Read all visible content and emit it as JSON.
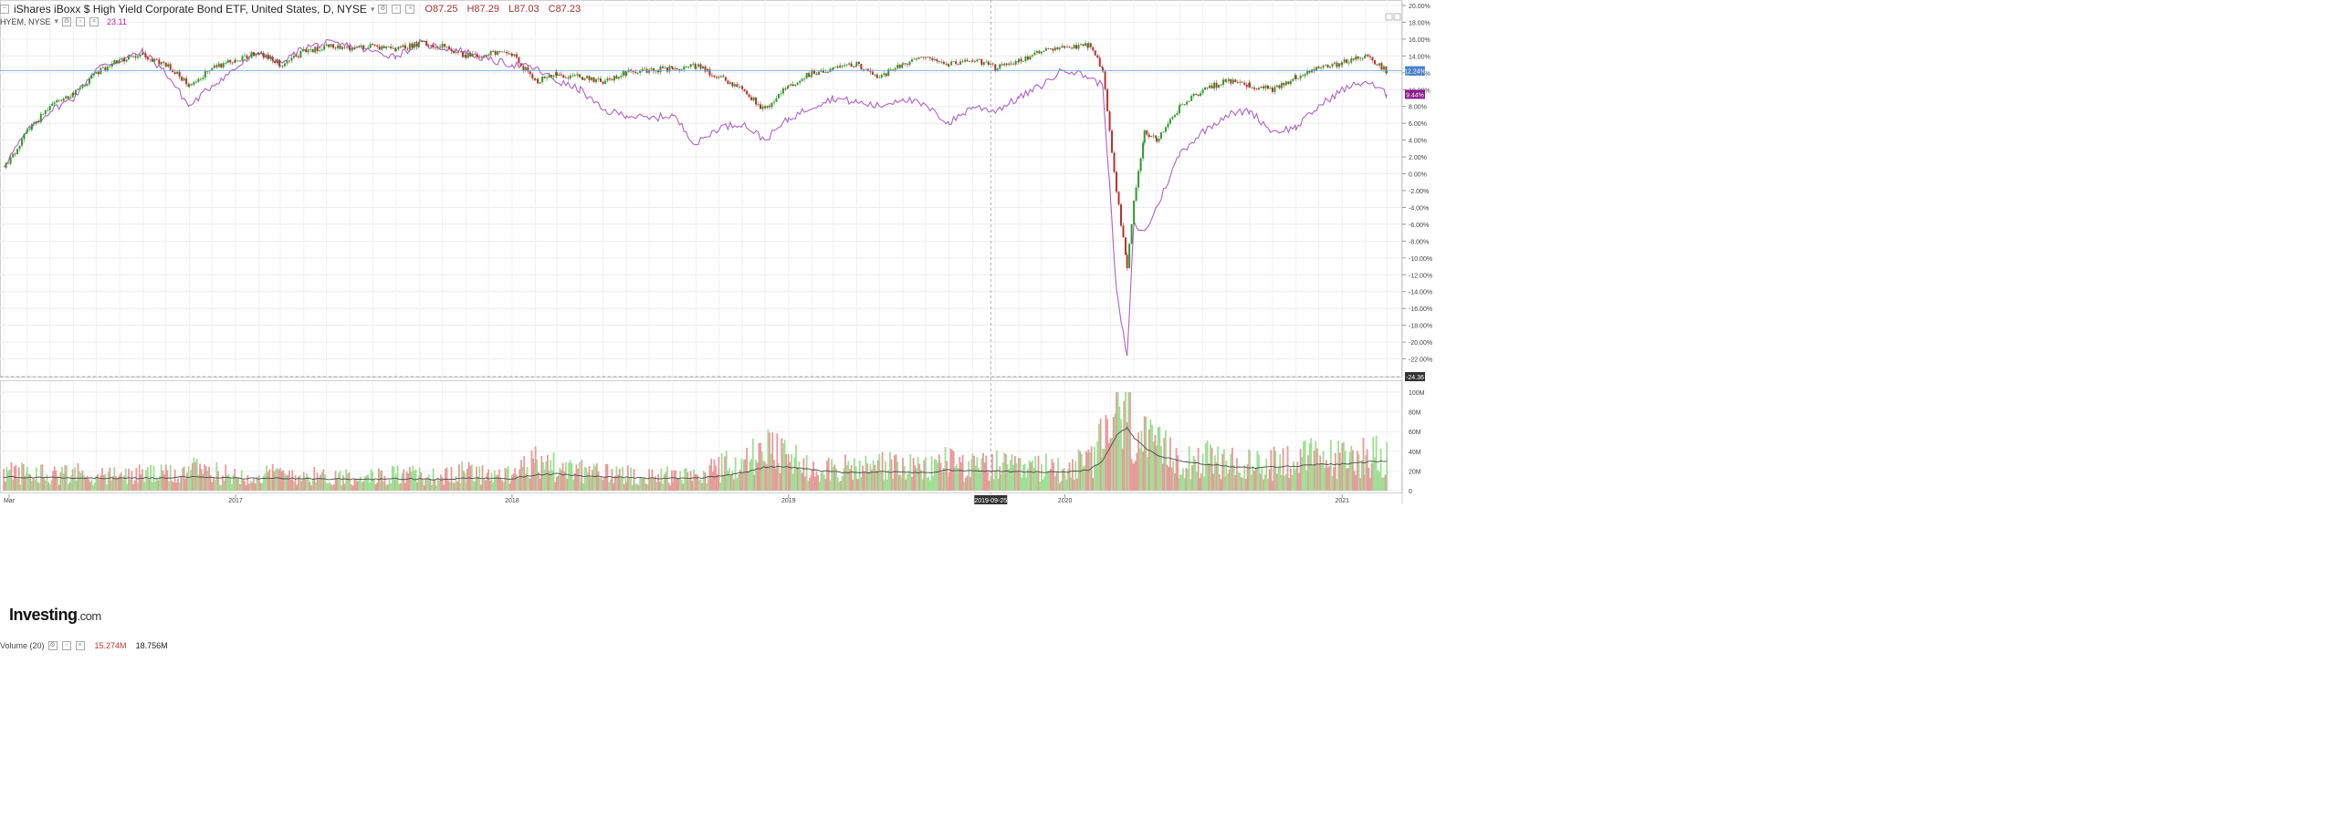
{
  "header": {
    "instrument": "iShares iBoxx $ High Yield Corporate Bond ETF, United States, D, NYSE",
    "open": "O87.25",
    "high": "H87.29",
    "low": "L87.03",
    "close": "C87.23",
    "compare_symbol": "HYEM, NYSE",
    "compare_value": "23.11"
  },
  "volume_legend": {
    "label": "Volume (20)",
    "value": "15.274M",
    "ma_value": "18.756M"
  },
  "logo": {
    "brand": "Investing",
    "suffix": ".com"
  },
  "crosshair": {
    "date_label": "2019-09-25",
    "price_label": "-24.36"
  },
  "colors": {
    "up": "#2e9b2e",
    "down": "#b8312f",
    "compare": "#b061c8",
    "current_line": "#6fa3e0",
    "current_badge": "#4a80d0",
    "compare_badge": "#8b1a8b",
    "volume_up": "#9fde94",
    "volume_down": "#e89a9a",
    "volume_ma": "#4a4a4a"
  },
  "chart_data": [
    {
      "type": "line",
      "title": "iShares iBoxx $ High Yield Corporate Bond ETF, United States, D, NYSE",
      "y_unit": "%",
      "ylim": [
        -24,
        20
      ],
      "y_ticks": [
        "20.00%",
        "18.00%",
        "16.00%",
        "14.00%",
        "12.00%",
        "10.00%",
        "8.00%",
        "6.00%",
        "4.00%",
        "2.00%",
        "0.00%",
        "-2.00%",
        "-4.00%",
        "-6.00%",
        "-8.00%",
        "-10.00%",
        "-12.00%",
        "-14.00%",
        "-16.00%",
        "-18.00%",
        "-20.00%",
        "-22.00%"
      ],
      "x_ticks": [
        "Mar",
        "2017",
        "2018",
        "2019",
        "2020",
        "2021"
      ],
      "current_value_labels": [
        "12.24%",
        "9.44%"
      ],
      "grid": true,
      "series": [
        {
          "name": "iShares iBoxx $ High Yield Corporate Bond ETF",
          "style": "candlestick",
          "x": [
            "2016-03-01",
            "2016-04-01",
            "2016-05-01",
            "2016-06-01",
            "2016-07-01",
            "2016-08-01",
            "2016-09-01",
            "2016-10-01",
            "2016-11-01",
            "2016-12-01",
            "2017-01-01",
            "2017-02-01",
            "2017-03-01",
            "2017-04-01",
            "2017-05-01",
            "2017-06-01",
            "2017-07-01",
            "2017-08-01",
            "2017-09-01",
            "2017-10-01",
            "2017-11-01",
            "2017-12-01",
            "2018-01-01",
            "2018-02-01",
            "2018-03-01",
            "2018-04-01",
            "2018-05-01",
            "2018-06-01",
            "2018-07-01",
            "2018-08-01",
            "2018-09-01",
            "2018-10-01",
            "2018-11-01",
            "2018-12-01",
            "2019-01-01",
            "2019-02-01",
            "2019-03-01",
            "2019-04-01",
            "2019-05-01",
            "2019-06-01",
            "2019-07-01",
            "2019-08-01",
            "2019-09-01",
            "2019-10-01",
            "2019-11-01",
            "2019-12-01",
            "2020-01-01",
            "2020-02-01",
            "2020-02-20",
            "2020-03-09",
            "2020-03-23",
            "2020-04-01",
            "2020-04-15",
            "2020-05-01",
            "2020-06-01",
            "2020-07-01",
            "2020-08-01",
            "2020-09-01",
            "2020-10-01",
            "2020-11-01",
            "2020-12-01",
            "2021-01-01",
            "2021-02-01",
            "2021-03-01"
          ],
          "values": [
            0.5,
            5.0,
            8.0,
            9.5,
            12.0,
            13.5,
            14.0,
            13.0,
            10.5,
            12.5,
            13.5,
            14.5,
            13.0,
            14.5,
            15.2,
            15.0,
            15.2,
            14.8,
            15.5,
            15.2,
            14.0,
            14.3,
            14.2,
            11.0,
            11.8,
            11.5,
            11.0,
            12.0,
            12.3,
            12.5,
            12.8,
            11.5,
            10.0,
            7.5,
            10.5,
            12.0,
            12.5,
            13.0,
            11.5,
            13.0,
            14.0,
            13.0,
            13.6,
            12.6,
            13.5,
            14.5,
            15.0,
            15.2,
            12.5,
            -2.0,
            -11.0,
            -3.0,
            5.0,
            4.0,
            8.0,
            10.0,
            11.0,
            10.5,
            10.0,
            11.5,
            12.5,
            13.2,
            14.0,
            12.24
          ]
        },
        {
          "name": "HYEM, NYSE",
          "style": "line",
          "x": [
            "2016-03-01",
            "2016-04-01",
            "2016-05-01",
            "2016-06-01",
            "2016-07-01",
            "2016-08-01",
            "2016-09-01",
            "2016-10-01",
            "2016-11-01",
            "2016-12-01",
            "2017-01-01",
            "2017-02-01",
            "2017-03-01",
            "2017-04-01",
            "2017-05-01",
            "2017-06-01",
            "2017-07-01",
            "2017-08-01",
            "2017-09-01",
            "2017-10-01",
            "2017-11-01",
            "2017-12-01",
            "2018-01-01",
            "2018-02-01",
            "2018-03-01",
            "2018-04-01",
            "2018-05-01",
            "2018-06-01",
            "2018-07-01",
            "2018-08-01",
            "2018-09-01",
            "2018-10-01",
            "2018-11-01",
            "2018-12-01",
            "2019-01-01",
            "2019-02-01",
            "2019-03-01",
            "2019-04-01",
            "2019-05-01",
            "2019-06-01",
            "2019-07-01",
            "2019-08-01",
            "2019-09-01",
            "2019-10-01",
            "2019-11-01",
            "2019-12-01",
            "2020-01-01",
            "2020-02-01",
            "2020-02-20",
            "2020-03-09",
            "2020-03-23",
            "2020-04-01",
            "2020-04-15",
            "2020-05-01",
            "2020-06-01",
            "2020-07-01",
            "2020-08-01",
            "2020-09-01",
            "2020-10-01",
            "2020-11-01",
            "2020-12-01",
            "2021-01-01",
            "2021-02-01",
            "2021-03-01"
          ],
          "values": [
            1.0,
            5.0,
            7.5,
            9.0,
            12.5,
            13.5,
            14.5,
            12.0,
            8.0,
            10.5,
            12.5,
            14.5,
            13.0,
            15.0,
            15.5,
            15.2,
            14.5,
            14.0,
            15.5,
            15.0,
            14.5,
            13.5,
            13.0,
            12.5,
            11.0,
            10.0,
            7.5,
            7.0,
            6.5,
            7.0,
            3.5,
            5.5,
            6.0,
            4.0,
            6.5,
            8.0,
            9.0,
            8.5,
            8.0,
            9.0,
            8.0,
            6.0,
            8.0,
            7.5,
            9.0,
            10.5,
            12.5,
            11.5,
            10.5,
            -14.0,
            -22.0,
            -6.0,
            -7.0,
            -4.0,
            2.5,
            5.0,
            7.0,
            7.5,
            5.0,
            5.5,
            8.0,
            10.0,
            11.0,
            9.44
          ]
        }
      ]
    },
    {
      "type": "bar",
      "title": "Volume (20)",
      "ylim": [
        0,
        100000000
      ],
      "y_ticks": [
        "100M",
        "80M",
        "60M",
        "40M",
        "20M",
        "0"
      ],
      "x": [
        "2016-03-01",
        "2016-04-01",
        "2016-05-01",
        "2016-06-01",
        "2016-07-01",
        "2016-08-01",
        "2016-09-01",
        "2016-10-01",
        "2016-11-01",
        "2016-12-01",
        "2017-01-01",
        "2017-02-01",
        "2017-03-01",
        "2017-04-01",
        "2017-05-01",
        "2017-06-01",
        "2017-07-01",
        "2017-08-01",
        "2017-09-01",
        "2017-10-01",
        "2017-11-01",
        "2017-12-01",
        "2018-01-01",
        "2018-02-01",
        "2018-03-01",
        "2018-04-01",
        "2018-05-01",
        "2018-06-01",
        "2018-07-01",
        "2018-08-01",
        "2018-09-01",
        "2018-10-01",
        "2018-11-01",
        "2018-12-01",
        "2019-01-01",
        "2019-02-01",
        "2019-03-01",
        "2019-04-01",
        "2019-05-01",
        "2019-06-01",
        "2019-07-01",
        "2019-08-01",
        "2019-09-01",
        "2019-10-01",
        "2019-11-01",
        "2019-12-01",
        "2020-01-01",
        "2020-02-01",
        "2020-02-20",
        "2020-03-09",
        "2020-03-23",
        "2020-04-01",
        "2020-04-15",
        "2020-05-01",
        "2020-06-01",
        "2020-07-01",
        "2020-08-01",
        "2020-09-01",
        "2020-10-01",
        "2020-11-01",
        "2020-12-01",
        "2021-01-01",
        "2021-02-01",
        "2021-03-01"
      ],
      "series": [
        {
          "name": "Volume",
          "values": [
            18000000,
            17000000,
            16000000,
            17000000,
            15000000,
            14000000,
            16000000,
            15000000,
            20000000,
            17000000,
            15000000,
            14000000,
            17000000,
            15000000,
            13000000,
            14000000,
            13000000,
            16000000,
            14000000,
            13000000,
            18000000,
            16000000,
            14000000,
            28000000,
            22000000,
            18000000,
            17000000,
            16000000,
            14000000,
            15000000,
            14000000,
            22000000,
            26000000,
            38000000,
            30000000,
            24000000,
            22000000,
            20000000,
            25000000,
            22000000,
            20000000,
            30000000,
            22000000,
            24000000,
            20000000,
            22000000,
            22000000,
            26000000,
            45000000,
            78000000,
            70000000,
            55000000,
            45000000,
            38000000,
            32000000,
            30000000,
            26000000,
            24000000,
            28000000,
            30000000,
            32000000,
            30000000,
            34000000,
            35000000
          ]
        },
        {
          "name": "Volume MA",
          "values": [
            14000000,
            13500000,
            13000000,
            13200000,
            12800000,
            12500000,
            12700000,
            12600000,
            14000000,
            13500000,
            12800000,
            12200000,
            12600000,
            12300000,
            11800000,
            11700000,
            11500000,
            12000000,
            11800000,
            11500000,
            12500000,
            12600000,
            12200000,
            16000000,
            17000000,
            15000000,
            14000000,
            13500000,
            12800000,
            12600000,
            12400000,
            15000000,
            18000000,
            24000000,
            24000000,
            21000000,
            19000000,
            18000000,
            19000000,
            19000000,
            18000000,
            21000000,
            20000000,
            20000000,
            19000000,
            19000000,
            19000000,
            21000000,
            30000000,
            56000000,
            64000000,
            54000000,
            44000000,
            36000000,
            30000000,
            27000000,
            25000000,
            23000000,
            24000000,
            25000000,
            27000000,
            27000000,
            29000000,
            30000000
          ]
        }
      ]
    }
  ]
}
